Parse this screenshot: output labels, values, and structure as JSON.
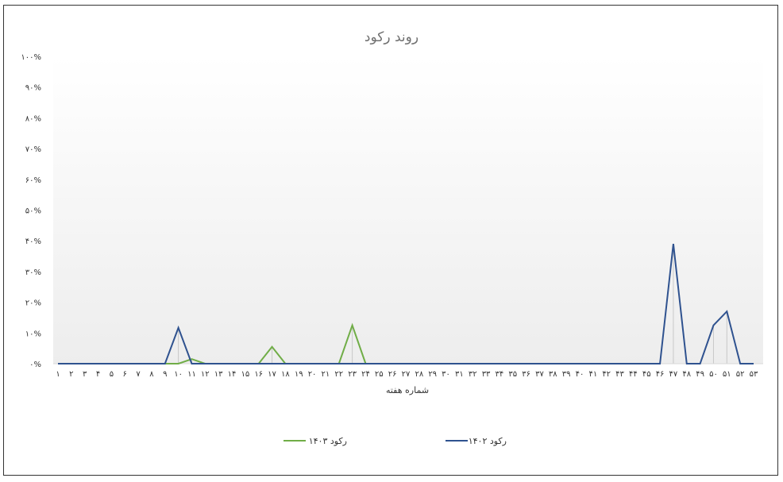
{
  "chart_data": {
    "type": "line",
    "title": "روند رکود",
    "xlabel": "شماره هفته",
    "ylabel": "",
    "ylim": [
      0,
      100
    ],
    "y_ticks": [
      "۰%",
      "۱۰%",
      "۲۰%",
      "۳۰%",
      "۴۰%",
      "۵۰%",
      "۶۰%",
      "۷۰%",
      "۸۰%",
      "۹۰%",
      "۱۰۰%"
    ],
    "x": [
      1,
      2,
      3,
      4,
      5,
      6,
      7,
      8,
      9,
      10,
      11,
      12,
      13,
      14,
      15,
      16,
      17,
      18,
      19,
      20,
      21,
      22,
      23,
      24,
      25,
      26,
      27,
      28,
      29,
      30,
      31,
      32,
      33,
      34,
      35,
      36,
      37,
      38,
      39,
      40,
      41,
      42,
      43,
      44,
      45,
      46,
      47,
      48,
      49,
      50,
      51,
      52,
      53
    ],
    "x_tick_labels": [
      "۱",
      "۲",
      "۳",
      "۴",
      "۵",
      "۶",
      "۷",
      "۸",
      "۹",
      "۱۰",
      "۱۱",
      "۱۲",
      "۱۳",
      "۱۴",
      "۱۵",
      "۱۶",
      "۱۷",
      "۱۸",
      "۱۹",
      "۲۰",
      "۲۱",
      "۲۲",
      "۲۳",
      "۲۴",
      "۲۵",
      "۲۶",
      "۲۷",
      "۲۸",
      "۲۹",
      "۳۰",
      "۳۱",
      "۳۲",
      "۳۳",
      "۳۴",
      "۳۵",
      "۳۶",
      "۳۷",
      "۳۸",
      "۳۹",
      "۴۰",
      "۴۱",
      "۴۲",
      "۴۳",
      "۴۴",
      "۴۵",
      "۴۶",
      "۴۷",
      "۴۸",
      "۴۹",
      "۵۰",
      "۵۱",
      "۵۲",
      "۵۳"
    ],
    "series": [
      {
        "name": "رکود ۱۴۰۳",
        "color": "#70ad47",
        "values": [
          0,
          0,
          0,
          0,
          0,
          0,
          0,
          0,
          0,
          0,
          1.5,
          0,
          0,
          0,
          0,
          0,
          5.5,
          0,
          0,
          0,
          0,
          0,
          12.5,
          0,
          null,
          null,
          null,
          null,
          null,
          null,
          null,
          null,
          null,
          null,
          null,
          null,
          null,
          null,
          null,
          null,
          null,
          null,
          null,
          null,
          null,
          null,
          null,
          null,
          null,
          null,
          null,
          null,
          null
        ]
      },
      {
        "name": "رکود ۱۴۰۲",
        "color": "#2f528f",
        "values": [
          0,
          0,
          0,
          0,
          0,
          0,
          0,
          0,
          0,
          11.7,
          0,
          0,
          0,
          0,
          0,
          0,
          0,
          0,
          0,
          0,
          0,
          0,
          0,
          0,
          0,
          0,
          0,
          0,
          0,
          0,
          0,
          0,
          0,
          0,
          0,
          0,
          0,
          0,
          0,
          0,
          0,
          0,
          0,
          0,
          0,
          0,
          39,
          0,
          0,
          12.5,
          17,
          0,
          0
        ]
      }
    ],
    "legend_position": "bottom",
    "grid": false
  }
}
